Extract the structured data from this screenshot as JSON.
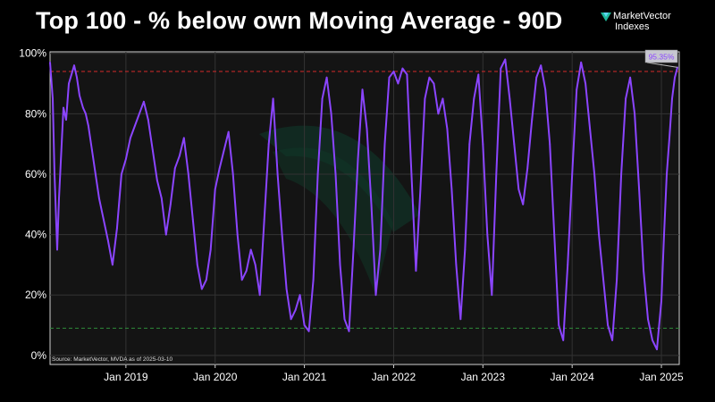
{
  "header": {
    "title": "Top 100 - % below own Moving Average - 90D",
    "brand_name": "MarketVector",
    "brand_sub": "Indexes"
  },
  "colors": {
    "series": "#8b45ff",
    "upper_ref": "#d42a2a",
    "lower_ref": "#2e8b3a",
    "grid": "#333333",
    "plot_bg": "#141414",
    "callout_bg": "#c7c7d0",
    "brand_mark": "#1fb89a"
  },
  "chart_data": {
    "type": "line",
    "title": "Top 100 - % below own Moving Average - 90D",
    "xlabel": "",
    "ylabel": "",
    "ylim": [
      -3,
      100.5
    ],
    "xlim": [
      2018.15,
      2025.2
    ],
    "grid": true,
    "y_ticks": [
      0,
      20,
      40,
      60,
      80,
      100
    ],
    "y_tick_labels": [
      "0%",
      "20%",
      "40%",
      "60%",
      "80%",
      "100%"
    ],
    "x_ticks": [
      2019,
      2020,
      2021,
      2022,
      2023,
      2024,
      2025
    ],
    "x_tick_labels": [
      "Jan 2019",
      "Jan 2020",
      "Jan 2021",
      "Jan 2022",
      "Jan 2023",
      "Jan 2024",
      "Jan 2025"
    ],
    "reference_lines": [
      {
        "name": "upper",
        "y": 94
      },
      {
        "name": "lower",
        "y": 9
      }
    ],
    "last_value_label": "95.35%",
    "last_value": 95.35,
    "source_note": "Source: MarketVector, MVDA as of 2025-03-10",
    "series": [
      {
        "name": "% below own 90D moving average",
        "x": [
          2018.15,
          2018.18,
          2018.2,
          2018.23,
          2018.25,
          2018.28,
          2018.3,
          2018.33,
          2018.36,
          2018.39,
          2018.42,
          2018.45,
          2018.48,
          2018.52,
          2018.55,
          2018.58,
          2018.62,
          2018.66,
          2018.7,
          2018.75,
          2018.8,
          2018.85,
          2018.9,
          2018.95,
          2019.0,
          2019.05,
          2019.1,
          2019.15,
          2019.2,
          2019.25,
          2019.3,
          2019.35,
          2019.4,
          2019.45,
          2019.5,
          2019.55,
          2019.6,
          2019.65,
          2019.7,
          2019.75,
          2019.8,
          2019.85,
          2019.9,
          2019.95,
          2020.0,
          2020.05,
          2020.1,
          2020.15,
          2020.2,
          2020.25,
          2020.3,
          2020.35,
          2020.4,
          2020.45,
          2020.5,
          2020.55,
          2020.6,
          2020.65,
          2020.7,
          2020.75,
          2020.8,
          2020.85,
          2020.9,
          2020.95,
          2021.0,
          2021.05,
          2021.1,
          2021.15,
          2021.2,
          2021.25,
          2021.3,
          2021.35,
          2021.4,
          2021.45,
          2021.5,
          2021.55,
          2021.6,
          2021.65,
          2021.7,
          2021.75,
          2021.8,
          2021.85,
          2021.9,
          2021.95,
          2022.0,
          2022.05,
          2022.1,
          2022.15,
          2022.2,
          2022.25,
          2022.3,
          2022.35,
          2022.4,
          2022.45,
          2022.5,
          2022.55,
          2022.6,
          2022.65,
          2022.7,
          2022.75,
          2022.8,
          2022.85,
          2022.9,
          2022.95,
          2023.0,
          2023.05,
          2023.1,
          2023.15,
          2023.2,
          2023.25,
          2023.3,
          2023.35,
          2023.4,
          2023.45,
          2023.5,
          2023.55,
          2023.6,
          2023.65,
          2023.7,
          2023.75,
          2023.8,
          2023.85,
          2023.9,
          2023.95,
          2024.0,
          2024.05,
          2024.1,
          2024.15,
          2024.2,
          2024.25,
          2024.3,
          2024.35,
          2024.4,
          2024.45,
          2024.5,
          2024.55,
          2024.6,
          2024.65,
          2024.7,
          2024.75,
          2024.8,
          2024.85,
          2024.9,
          2024.95,
          2025.0,
          2025.03,
          2025.06,
          2025.09,
          2025.12,
          2025.15,
          2025.18
        ],
        "values": [
          97,
          85,
          60,
          35,
          52,
          70,
          82,
          78,
          90,
          93,
          96,
          92,
          86,
          82,
          80,
          76,
          68,
          60,
          52,
          45,
          38,
          30,
          42,
          60,
          65,
          72,
          76,
          80,
          84,
          78,
          68,
          58,
          52,
          40,
          50,
          62,
          66,
          72,
          60,
          45,
          30,
          22,
          25,
          35,
          55,
          62,
          68,
          74,
          60,
          40,
          25,
          28,
          35,
          30,
          20,
          45,
          70,
          85,
          60,
          40,
          22,
          12,
          15,
          20,
          10,
          8,
          25,
          60,
          85,
          92,
          80,
          60,
          30,
          12,
          8,
          35,
          65,
          88,
          75,
          50,
          20,
          35,
          70,
          92,
          94,
          90,
          95,
          93,
          60,
          28,
          55,
          85,
          92,
          90,
          80,
          85,
          75,
          55,
          30,
          12,
          35,
          70,
          85,
          93,
          70,
          40,
          20,
          60,
          95,
          98,
          85,
          70,
          55,
          50,
          62,
          78,
          92,
          96,
          88,
          70,
          40,
          10,
          5,
          30,
          60,
          88,
          97,
          90,
          75,
          60,
          40,
          25,
          10,
          5,
          25,
          60,
          85,
          92,
          80,
          55,
          28,
          12,
          5,
          2,
          18,
          40,
          60,
          72,
          85,
          92,
          95.35
        ]
      }
    ]
  }
}
